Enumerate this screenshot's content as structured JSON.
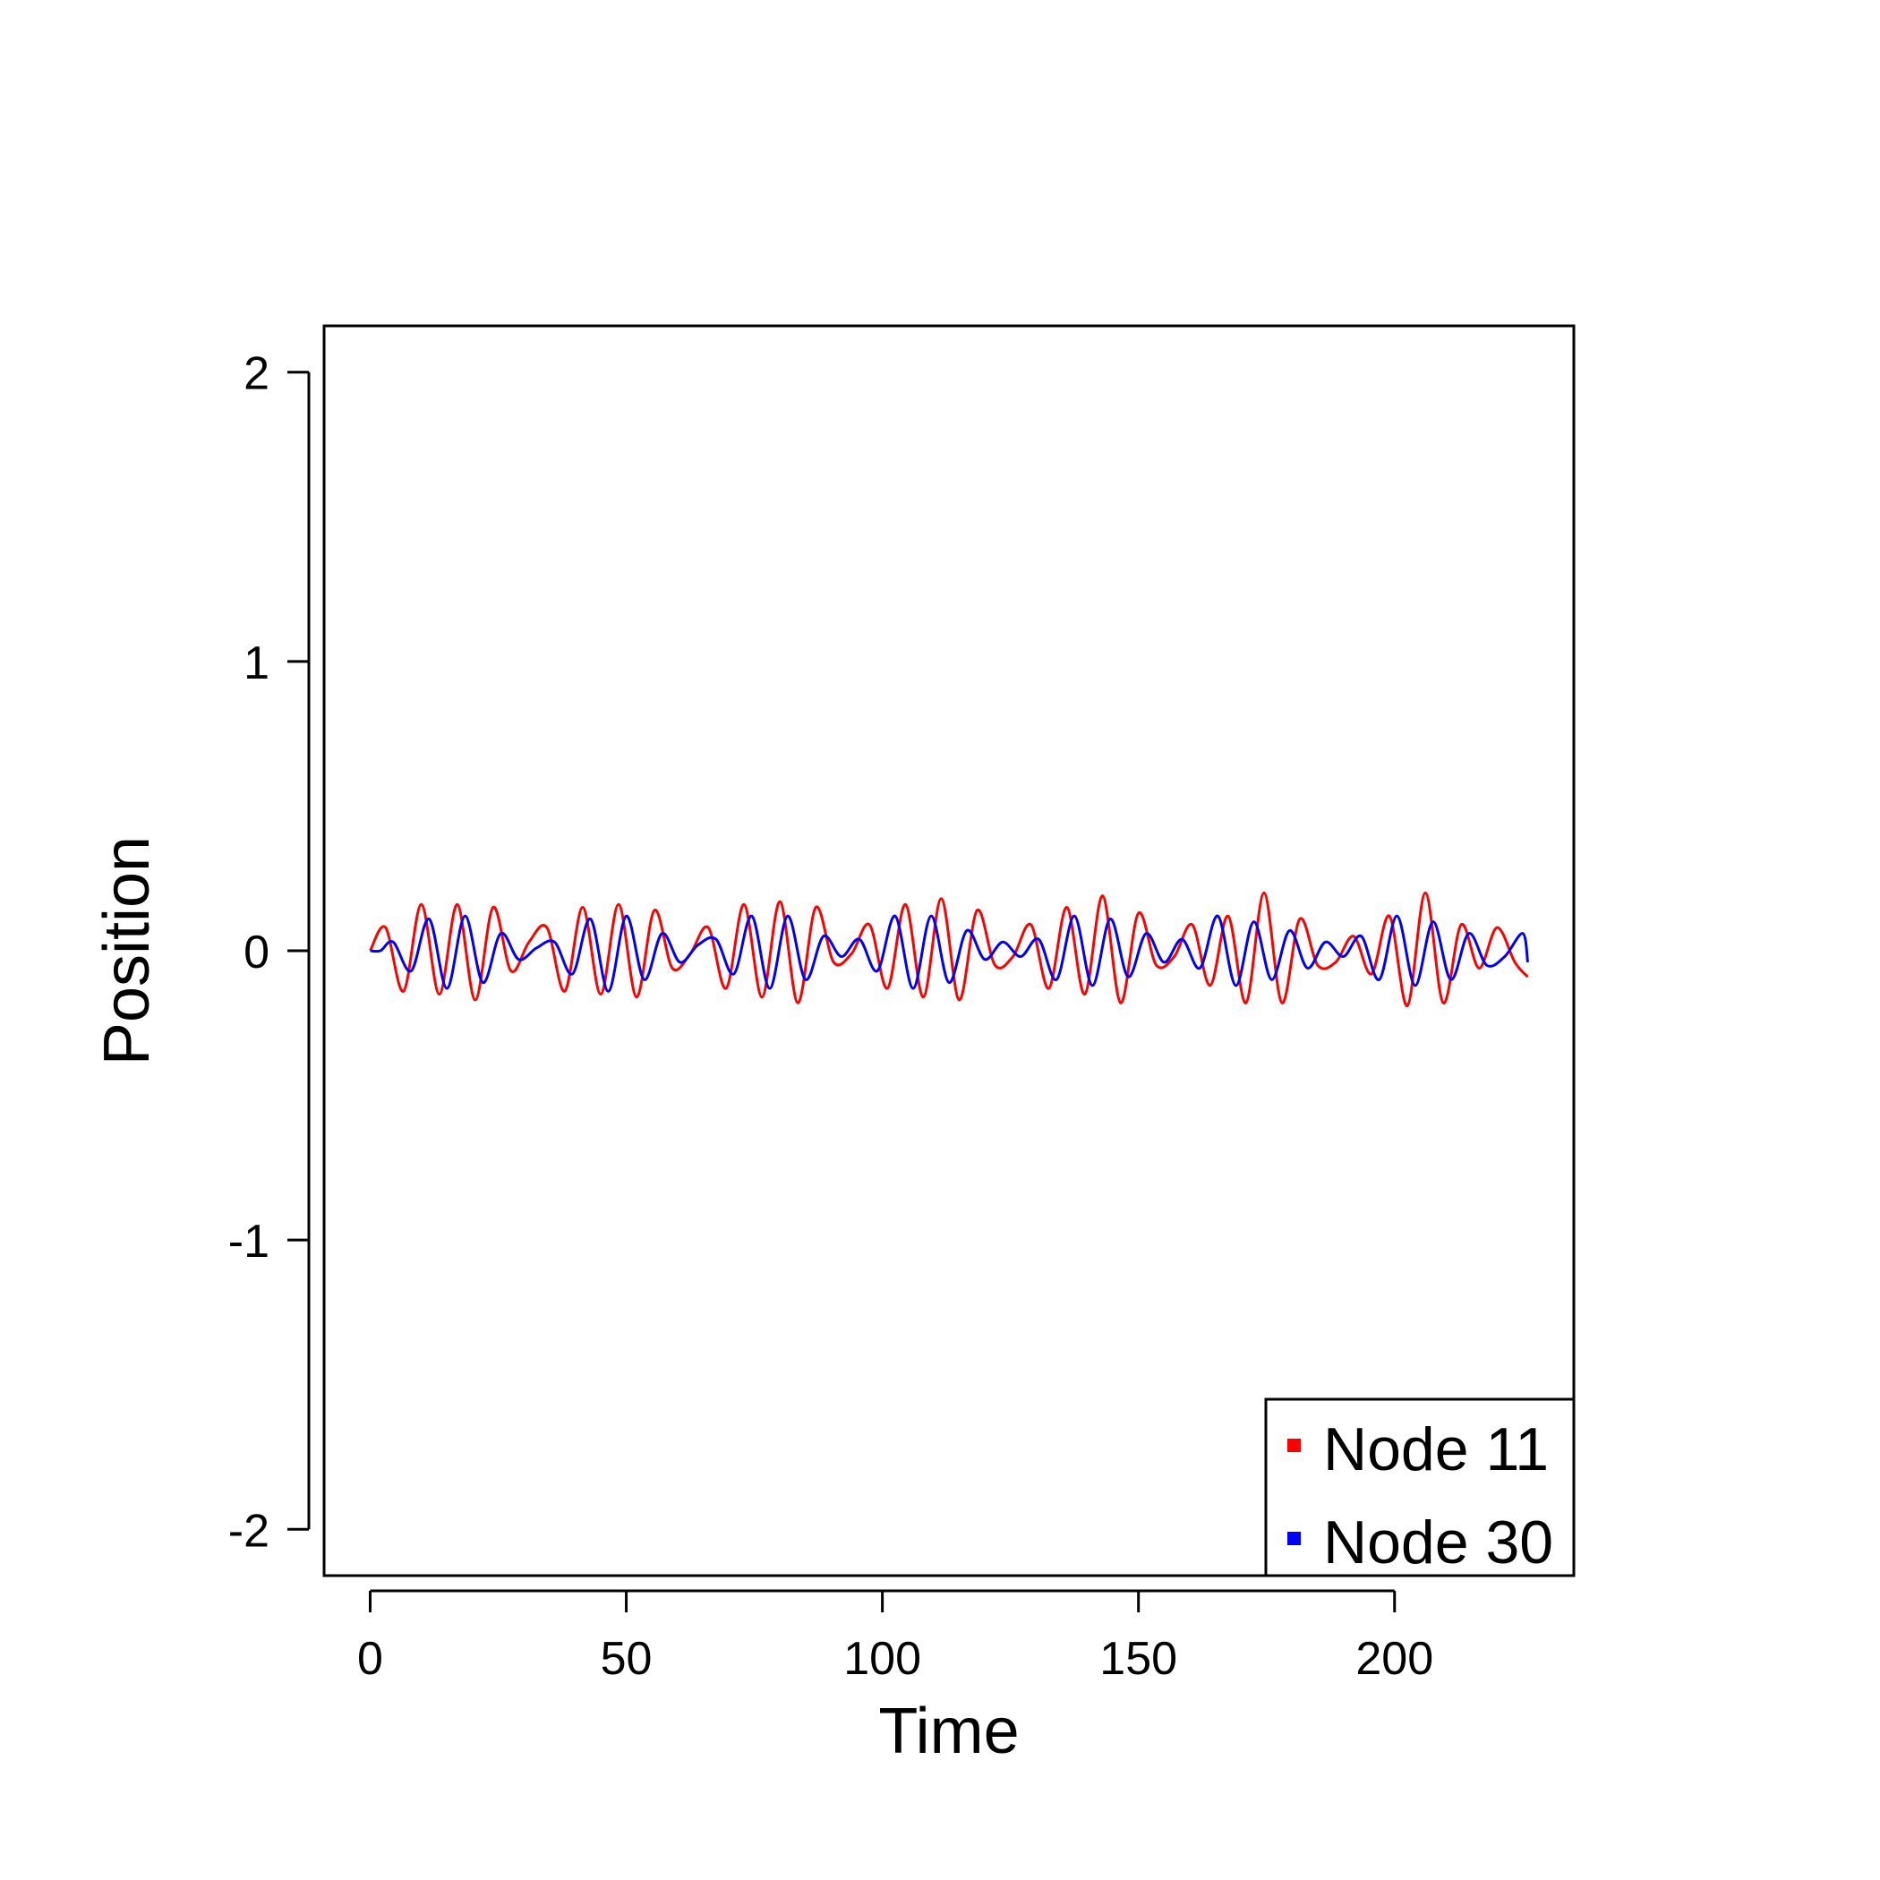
{
  "chart_data": {
    "type": "line",
    "title": "",
    "xlabel": "Time",
    "ylabel": "Position",
    "xlim": [
      -9,
      235
    ],
    "ylim": [
      -2.16,
      2.16
    ],
    "xticks": [
      0,
      50,
      100,
      150,
      200
    ],
    "yticks": [
      -2,
      -1,
      0,
      1,
      2
    ],
    "grid": false,
    "legend": "bottom-right",
    "series": [
      {
        "name": "Node 11",
        "color": "#ff0000",
        "x": [
          0,
          3,
          6.5,
          10,
          13.5,
          17,
          20.5,
          24,
          27.5,
          31,
          34.5,
          38,
          41.5,
          45,
          48.5,
          52,
          55.5,
          59,
          62.5,
          66,
          69.5,
          73,
          76.5,
          80,
          83.5,
          87,
          90.5,
          94,
          97.5,
          101,
          104.5,
          108,
          111.5,
          115,
          118.5,
          122,
          125.5,
          129,
          132.5,
          136,
          139.5,
          143,
          146.5,
          150,
          153.5,
          157,
          160.5,
          164,
          167.5,
          171,
          174.5,
          178,
          181.5,
          185,
          188.5,
          192,
          195.5,
          199,
          202.5,
          206,
          209.5,
          213,
          216.5,
          220,
          223.5,
          226
        ],
        "y": [
          0,
          0.08,
          -0.14,
          0.16,
          -0.15,
          0.16,
          -0.17,
          0.15,
          -0.07,
          0.03,
          0.08,
          -0.14,
          0.15,
          -0.15,
          0.16,
          -0.16,
          0.14,
          -0.06,
          -0.01,
          0.08,
          -0.13,
          0.16,
          -0.16,
          0.17,
          -0.18,
          0.15,
          -0.04,
          -0.01,
          0.09,
          -0.13,
          0.16,
          -0.16,
          0.18,
          -0.17,
          0.14,
          -0.05,
          -0.02,
          0.09,
          -0.13,
          0.15,
          -0.15,
          0.19,
          -0.18,
          0.13,
          -0.05,
          -0.02,
          0.09,
          -0.12,
          0.12,
          -0.18,
          0.2,
          -0.18,
          0.11,
          -0.05,
          -0.04,
          0.05,
          -0.08,
          0.12,
          -0.19,
          0.2,
          -0.18,
          0.09,
          -0.06,
          0.08,
          -0.04,
          -0.09
        ]
      },
      {
        "name": "Node 30",
        "color": "#0000ff",
        "x": [
          0,
          2,
          4.5,
          8,
          11.5,
          15,
          18.5,
          22,
          25.5,
          29,
          32.5,
          36,
          39.5,
          43,
          46.5,
          50,
          53.5,
          57,
          60.5,
          64,
          67.5,
          71,
          74.5,
          78,
          81.5,
          85,
          88.5,
          92,
          95.5,
          99,
          102.5,
          106,
          109.5,
          113,
          116.5,
          120,
          123.5,
          127,
          130.5,
          134,
          137.5,
          141,
          144.5,
          148,
          151.5,
          155,
          158.5,
          162,
          165.5,
          169,
          172.5,
          176,
          179.5,
          183,
          186.5,
          190,
          193.5,
          197,
          200.5,
          204,
          207.5,
          211,
          214.5,
          218,
          221.5,
          225,
          226
        ],
        "y": [
          0,
          0,
          0.03,
          -0.07,
          0.11,
          -0.13,
          0.12,
          -0.11,
          0.06,
          -0.03,
          0.01,
          0.03,
          -0.08,
          0.11,
          -0.14,
          0.12,
          -0.1,
          0.06,
          -0.04,
          0.02,
          0.04,
          -0.08,
          0.12,
          -0.13,
          0.12,
          -0.1,
          0.05,
          -0.02,
          0.04,
          -0.07,
          0.12,
          -0.13,
          0.12,
          -0.11,
          0.07,
          -0.03,
          0.03,
          -0.02,
          0.04,
          -0.1,
          0.12,
          -0.12,
          0.11,
          -0.09,
          0.06,
          -0.04,
          0.04,
          -0.06,
          0.12,
          -0.12,
          0.1,
          -0.1,
          0.07,
          -0.06,
          0.03,
          -0.02,
          0.05,
          -0.1,
          0.12,
          -0.12,
          0.1,
          -0.1,
          0.06,
          -0.05,
          -0.02,
          0.06,
          -0.04
        ]
      }
    ]
  }
}
